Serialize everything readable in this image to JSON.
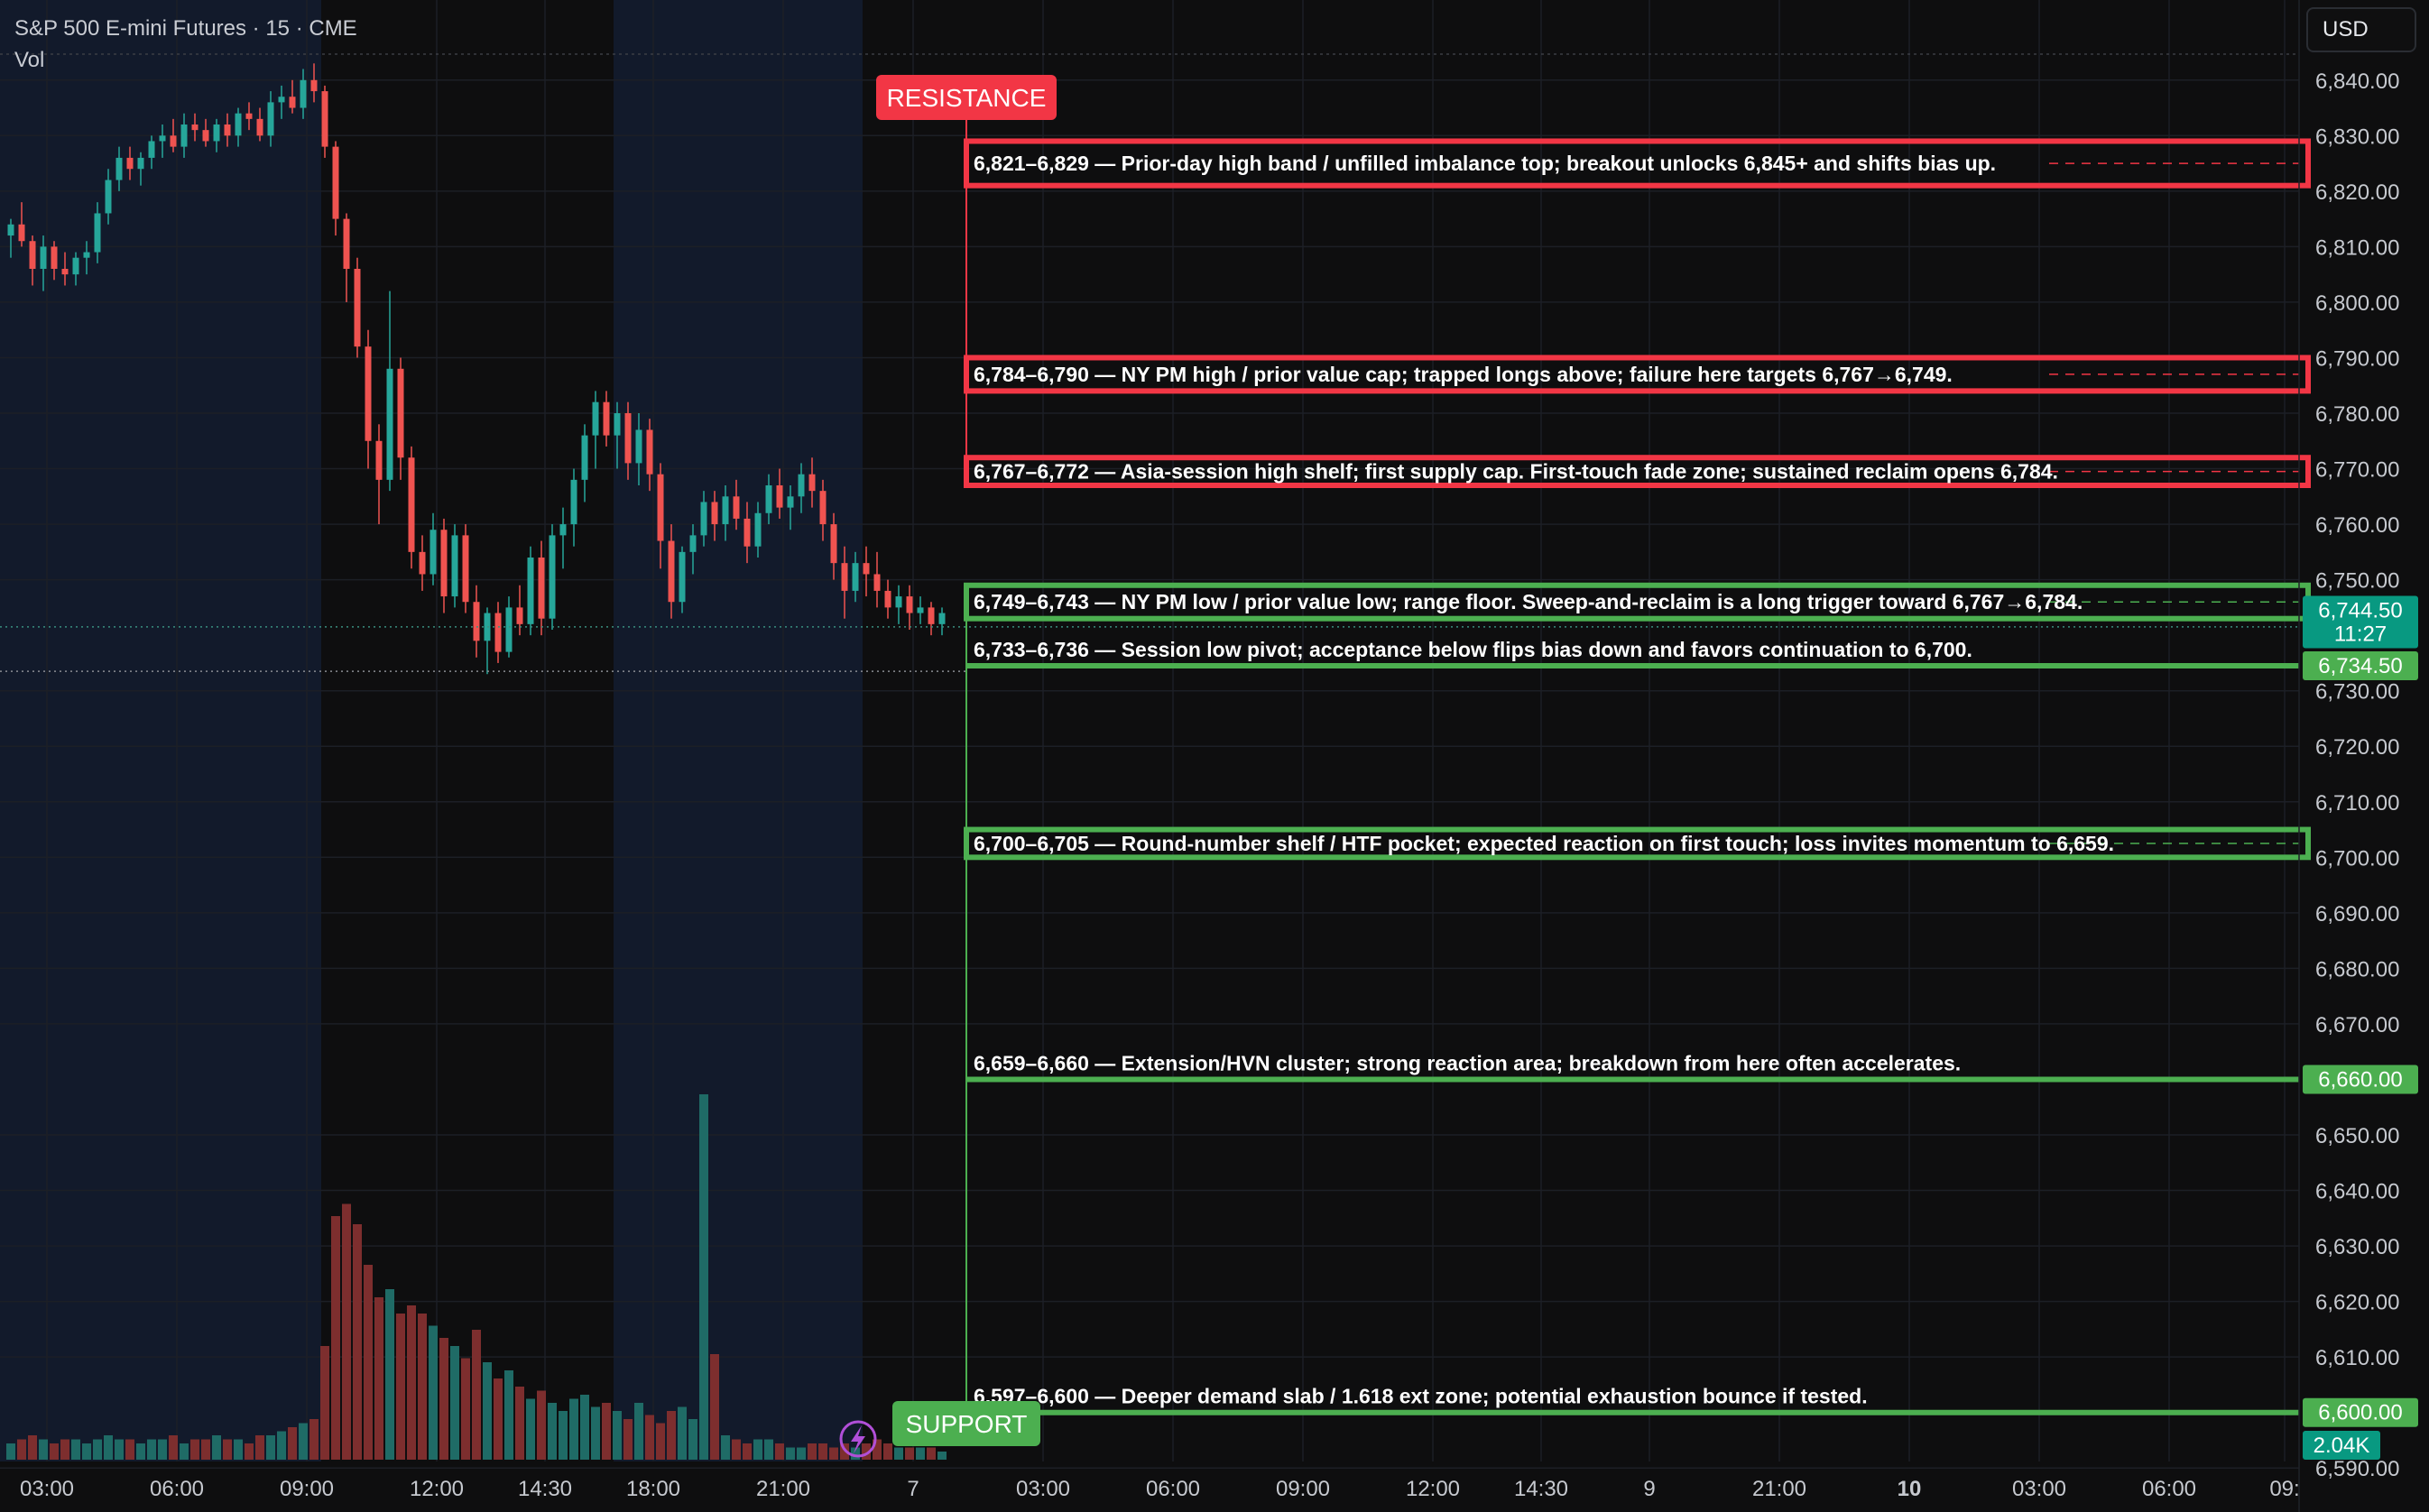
{
  "header": {
    "title": "S&P 500 E-mini Futures · 15 · CME",
    "vol_label": "Vol"
  },
  "currency_button": "USD",
  "colors": {
    "bull": "#26a69a",
    "bear": "#ef5350",
    "resistance": "#f23645",
    "support": "#4caf50",
    "price_tag": "#089981",
    "background": "#0e0e0f",
    "session_shade": "#121a2b"
  },
  "labels": {
    "resistance": "RESISTANCE",
    "support": "SUPPORT"
  },
  "chart_data": {
    "type": "candlestick",
    "ylim": [
      6585,
      6845
    ],
    "y_ticks": [
      "6,840.00",
      "6,830.00",
      "6,820.00",
      "6,810.00",
      "6,800.00",
      "6,790.00",
      "6,780.00",
      "6,770.00",
      "6,760.00",
      "6,750.00",
      "6,730.00",
      "6,720.00",
      "6,710.00",
      "6,700.00",
      "6,690.00",
      "6,680.00",
      "6,670.00",
      "6,650.00",
      "6,640.00",
      "6,630.00",
      "6,620.00",
      "6,610.00",
      "6,590.00"
    ],
    "x_ticks": [
      "03:00",
      "06:00",
      "09:00",
      "12:00",
      "14:30",
      "18:00",
      "21:00",
      "7",
      "03:00",
      "06:00",
      "09:00",
      "12:00",
      "14:30",
      "9",
      "21:00",
      "10",
      "03:00",
      "06:00",
      "09:"
    ],
    "price_line": 6741.5,
    "current_price": {
      "label": "6,744.50",
      "countdown": "11:27",
      "value": 6744.5
    },
    "volume_tag": "2.04K",
    "zones": [
      {
        "kind": "resistance",
        "low": 6821,
        "high": 6829,
        "text": "6,821–6,829 — Prior-day high band / unfilled imbalance top; breakout unlocks 6,845+ and shifts bias up."
      },
      {
        "kind": "resistance",
        "low": 6784,
        "high": 6790,
        "text": "6,784–6,790 — NY PM high / prior value cap; trapped longs above; failure here targets 6,767→6,749."
      },
      {
        "kind": "resistance",
        "low": 6767,
        "high": 6772,
        "text": "6,767–6,772 — Asia-session high shelf; first supply cap. First-touch fade zone; sustained reclaim opens 6,784."
      },
      {
        "kind": "support",
        "low": 6743,
        "high": 6749,
        "text": "6,749–6,743 — NY PM low / prior value low; range floor. Sweep-and-reclaim is a long trigger toward 6,767→6,784."
      }
    ],
    "levels": [
      {
        "price": 6734.5,
        "text": "6,733–6,736 — Session low pivot; acceptance below flips bias down and favors continuation to 6,700.",
        "tag": "6,734.50"
      },
      {
        "price": 6700,
        "text": "6,700–6,705 — Round-number shelf / HTF pocket; expected reaction on first touch; loss invites momentum to 6,659.",
        "tag": "",
        "band_high": 6705
      },
      {
        "price": 6660,
        "text": "6,659–6,660 — Extension/HVN cluster; strong reaction area; breakdown from here often accelerates.",
        "tag": "6,660.00"
      },
      {
        "price": 6600,
        "text": "6,597–6,600 — Deeper demand slab / 1.618 ext zone; potential exhaustion bounce if tested.",
        "tag": "6,600.00"
      }
    ],
    "candles": [
      [
        6812,
        6815,
        6808,
        6814
      ],
      [
        6814,
        6818,
        6810,
        6811
      ],
      [
        6811,
        6812,
        6803,
        6806
      ],
      [
        6806,
        6812,
        6802,
        6810
      ],
      [
        6810,
        6811,
        6804,
        6806
      ],
      [
        6806,
        6809,
        6803,
        6805
      ],
      [
        6805,
        6809,
        6803,
        6808
      ],
      [
        6808,
        6811,
        6805,
        6809
      ],
      [
        6809,
        6818,
        6807,
        6816
      ],
      [
        6816,
        6824,
        6814,
        6822
      ],
      [
        6822,
        6828,
        6820,
        6826
      ],
      [
        6826,
        6828,
        6822,
        6824
      ],
      [
        6824,
        6827,
        6821,
        6826
      ],
      [
        6826,
        6830,
        6824,
        6829
      ],
      [
        6829,
        6832,
        6826,
        6830
      ],
      [
        6830,
        6833,
        6827,
        6828
      ],
      [
        6828,
        6834,
        6826,
        6832
      ],
      [
        6832,
        6834,
        6829,
        6831
      ],
      [
        6831,
        6833,
        6828,
        6829
      ],
      [
        6829,
        6833,
        6827,
        6832
      ],
      [
        6832,
        6834,
        6828,
        6830
      ],
      [
        6830,
        6835,
        6828,
        6834
      ],
      [
        6834,
        6836,
        6831,
        6833
      ],
      [
        6833,
        6835,
        6829,
        6830
      ],
      [
        6830,
        6838,
        6828,
        6836
      ],
      [
        6836,
        6839,
        6833,
        6837
      ],
      [
        6837,
        6840,
        6834,
        6835
      ],
      [
        6835,
        6842,
        6833,
        6840
      ],
      [
        6840,
        6843,
        6836,
        6838
      ],
      [
        6838,
        6839,
        6826,
        6828
      ],
      [
        6828,
        6829,
        6812,
        6815
      ],
      [
        6815,
        6816,
        6800,
        6806
      ],
      [
        6806,
        6808,
        6790,
        6792
      ],
      [
        6792,
        6795,
        6770,
        6775
      ],
      [
        6775,
        6778,
        6760,
        6768
      ],
      [
        6768,
        6802,
        6766,
        6788
      ],
      [
        6788,
        6790,
        6768,
        6772
      ],
      [
        6772,
        6774,
        6752,
        6755
      ],
      [
        6755,
        6758,
        6748,
        6751
      ],
      [
        6751,
        6762,
        6749,
        6759
      ],
      [
        6759,
        6761,
        6744,
        6747
      ],
      [
        6747,
        6760,
        6745,
        6758
      ],
      [
        6758,
        6760,
        6744,
        6746
      ],
      [
        6746,
        6749,
        6736,
        6739
      ],
      [
        6739,
        6745,
        6733,
        6744
      ],
      [
        6744,
        6746,
        6735,
        6737
      ],
      [
        6737,
        6747,
        6736,
        6745
      ],
      [
        6745,
        6749,
        6740,
        6742
      ],
      [
        6742,
        6756,
        6740,
        6754
      ],
      [
        6754,
        6757,
        6740,
        6743
      ],
      [
        6743,
        6760,
        6741,
        6758
      ],
      [
        6758,
        6763,
        6752,
        6760
      ],
      [
        6760,
        6770,
        6756,
        6768
      ],
      [
        6768,
        6778,
        6764,
        6776
      ],
      [
        6776,
        6784,
        6770,
        6782
      ],
      [
        6782,
        6784,
        6774,
        6776
      ],
      [
        6776,
        6782,
        6770,
        6780
      ],
      [
        6780,
        6782,
        6768,
        6771
      ],
      [
        6771,
        6780,
        6767,
        6777
      ],
      [
        6777,
        6779,
        6766,
        6769
      ],
      [
        6769,
        6771,
        6752,
        6757
      ],
      [
        6757,
        6760,
        6743,
        6746
      ],
      [
        6746,
        6756,
        6744,
        6755
      ],
      [
        6755,
        6760,
        6751,
        6758
      ],
      [
        6758,
        6766,
        6756,
        6764
      ],
      [
        6764,
        6766,
        6757,
        6760
      ],
      [
        6760,
        6767,
        6757,
        6765
      ],
      [
        6765,
        6768,
        6759,
        6761
      ],
      [
        6761,
        6764,
        6753,
        6756
      ],
      [
        6756,
        6764,
        6754,
        6762
      ],
      [
        6762,
        6769,
        6760,
        6767
      ],
      [
        6767,
        6770,
        6761,
        6763
      ],
      [
        6763,
        6767,
        6759,
        6765
      ],
      [
        6765,
        6771,
        6762,
        6769
      ],
      [
        6769,
        6772,
        6763,
        6766
      ],
      [
        6766,
        6768,
        6757,
        6760
      ],
      [
        6760,
        6762,
        6750,
        6753
      ],
      [
        6753,
        6756,
        6743,
        6748
      ],
      [
        6748,
        6755,
        6746,
        6753
      ],
      [
        6753,
        6756,
        6747,
        6751
      ],
      [
        6751,
        6755,
        6745,
        6748
      ],
      [
        6748,
        6750,
        6743,
        6745
      ],
      [
        6745,
        6749,
        6742,
        6747
      ],
      [
        6747,
        6749,
        6741,
        6744
      ],
      [
        6744,
        6747,
        6742,
        6745
      ],
      [
        6745,
        6746,
        6740,
        6742
      ],
      [
        6742,
        6745,
        6740,
        6744
      ]
    ],
    "volume": [
      4,
      5,
      6,
      5,
      4,
      5,
      5,
      4,
      5,
      6,
      5,
      5,
      4,
      5,
      5,
      6,
      4,
      5,
      5,
      6,
      5,
      5,
      4,
      6,
      6,
      7,
      8,
      9,
      10,
      28,
      60,
      63,
      58,
      48,
      40,
      42,
      36,
      38,
      36,
      33,
      30,
      28,
      25,
      32,
      24,
      20,
      22,
      18,
      15,
      17,
      14,
      12,
      15,
      16,
      13,
      14,
      12,
      10,
      14,
      11,
      9,
      12,
      13,
      10,
      90,
      26,
      6,
      5,
      4,
      5,
      5,
      4,
      3,
      3,
      4,
      4,
      3,
      4,
      3,
      4,
      5,
      4,
      3,
      3,
      3,
      3,
      2
    ]
  }
}
